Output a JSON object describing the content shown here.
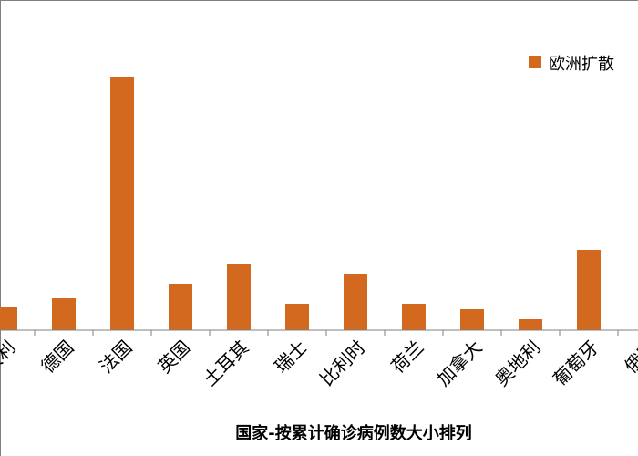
{
  "chart_data": {
    "type": "bar",
    "categories": [
      "大利",
      "德国",
      "法国",
      "英国",
      "土耳其",
      "瑞士",
      "比利时",
      "荷兰",
      "加拿大",
      "奥地利",
      "葡萄牙",
      "俄罗"
    ],
    "series": [
      {
        "name": "欧洲扩散",
        "values": [
          2.5,
          3.5,
          27.8,
          5.1,
          7.2,
          2.9,
          6.2,
          2.9,
          2.3,
          1.2,
          8.8,
          0
        ]
      }
    ],
    "xlabel": "国家-按累计确诊病例数大小排列",
    "ylabel": "",
    "ylim": [
      0,
      35
    ],
    "grid": false,
    "legend": "top-right",
    "colors": {
      "bar": "#D2691E",
      "axis": "#808080",
      "frame": "#808080"
    }
  }
}
